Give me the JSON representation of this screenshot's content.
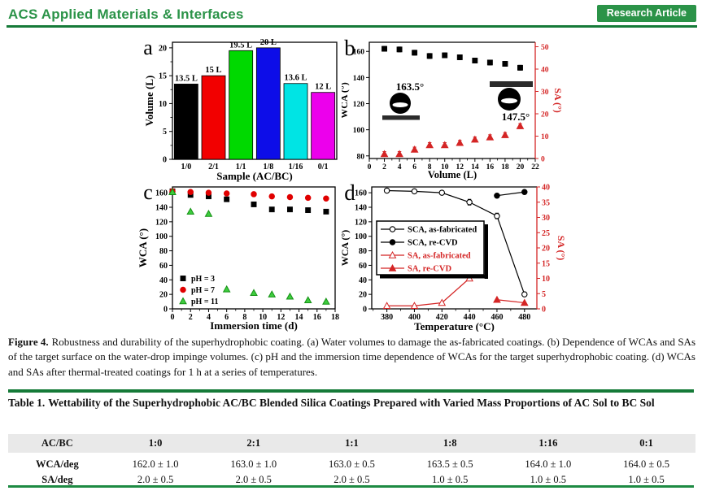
{
  "header": {
    "journal": "ACS Applied Materials & Interfaces",
    "badge": "Research Article",
    "accent_color": "#2b9348",
    "rule_color": "#157a38"
  },
  "figure": {
    "caption_label": "Figure 4.",
    "caption_text": "Robustness and durability of the superhydrophobic coating. (a) Water volumes to damage the as-fabricated coatings. (b) Dependence of WCAs and SAs of the target surface on the water-drop impinge volumes. (c) pH and the immersion time dependence of WCAs for the target superhydrophobic coating. (d) WCAs and SAs after thermal-treated coatings for 1 h at a series of temperatures."
  },
  "chart_data": [
    {
      "panel": "a",
      "type": "bar",
      "categories": [
        "1/0",
        "2/1",
        "1/1",
        "1/8",
        "1/16",
        "0/1"
      ],
      "values": [
        13.5,
        15,
        19.5,
        20,
        13.6,
        12
      ],
      "bar_labels": [
        "13.5 L",
        "15 L",
        "19.5 L",
        "20 L",
        "13.6 L",
        "12 L"
      ],
      "bar_colors": [
        "#000000",
        "#f20000",
        "#00d900",
        "#0d0de8",
        "#00e4e4",
        "#ec00ec"
      ],
      "xlabel": "Sample (AC/BC)",
      "ylabel": "Volume (L)",
      "ylim": [
        0,
        21
      ],
      "yticks": [
        0,
        5,
        10,
        15,
        20
      ]
    },
    {
      "panel": "b",
      "type": "scatter",
      "xlabel": "Volume (L)",
      "ylabel_left": "WCA (°)",
      "ylabel_right": "SA (°)",
      "xlim": [
        0,
        22
      ],
      "xticks": [
        0,
        2,
        4,
        6,
        8,
        10,
        12,
        14,
        16,
        18,
        20,
        22
      ],
      "ylim_left": [
        78,
        167
      ],
      "yticks_left": [
        80,
        100,
        120,
        140,
        160
      ],
      "ylim_right": [
        0,
        52
      ],
      "yticks_right": [
        0,
        10,
        20,
        30,
        40,
        50
      ],
      "series": [
        {
          "name": "WCA",
          "axis": "left",
          "marker": "square",
          "color": "#000000",
          "x": [
            2,
            4,
            6,
            8,
            10,
            12,
            14,
            16,
            18,
            20
          ],
          "y": [
            162,
            161.5,
            159,
            156.5,
            157,
            155.5,
            153,
            151.5,
            150.5,
            147.5
          ]
        },
        {
          "name": "SA",
          "axis": "right",
          "marker": "triangle",
          "color": "#d42525",
          "x": [
            2,
            4,
            6,
            8,
            10,
            12,
            14,
            16,
            18,
            20
          ],
          "y": [
            2,
            2,
            4,
            6,
            6,
            7,
            8.5,
            9.5,
            10.5,
            14.5
          ]
        }
      ],
      "annotations": [
        {
          "text": "163.5°",
          "target": "as-fabricated water drop inset"
        },
        {
          "text": "147.5°",
          "target": "impinged water drop inset"
        }
      ]
    },
    {
      "panel": "c",
      "type": "scatter",
      "xlabel": "Immersion time (d)",
      "ylabel": "WCA (°)",
      "xlim": [
        0,
        18
      ],
      "xticks": [
        0,
        2,
        4,
        6,
        8,
        10,
        12,
        14,
        16,
        18
      ],
      "ylim": [
        0,
        168
      ],
      "yticks": [
        0,
        20,
        40,
        60,
        80,
        100,
        120,
        140,
        160
      ],
      "legend_position": "lower-left",
      "series": [
        {
          "name": "pH = 3",
          "marker": "square",
          "color": "#000000",
          "x": [
            0,
            2,
            4,
            6,
            9,
            11,
            13,
            15,
            17
          ],
          "y": [
            162,
            157,
            155,
            151,
            144,
            137,
            137,
            136,
            134
          ]
        },
        {
          "name": "pH = 7",
          "marker": "circle",
          "color": "#e00000",
          "x": [
            0,
            2,
            4,
            6,
            9,
            11,
            13,
            15,
            17
          ],
          "y": [
            162,
            161,
            160,
            159,
            158,
            155,
            154,
            153,
            152
          ]
        },
        {
          "name": "pH = 11",
          "marker": "triangle",
          "color": "#3ecc3e",
          "x": [
            0,
            2,
            4,
            6,
            9,
            11,
            13,
            15,
            17
          ],
          "y": [
            161,
            134,
            131,
            27,
            22,
            20,
            17,
            12,
            10
          ]
        }
      ]
    },
    {
      "panel": "d",
      "type": "line",
      "xlabel": "Temperature (°C)",
      "ylabel_left": "WCA (°)",
      "ylabel_right": "SA (°)",
      "xlim": [
        369,
        489
      ],
      "xticks": [
        380,
        400,
        420,
        440,
        460,
        480
      ],
      "ylim_left": [
        0,
        168
      ],
      "yticks_left": [
        0,
        20,
        40,
        60,
        80,
        100,
        120,
        140,
        160
      ],
      "ylim_right": [
        0,
        40
      ],
      "yticks_right": [
        0,
        5,
        10,
        15,
        20,
        25,
        30,
        35,
        40
      ],
      "legend_position": "center-left",
      "series": [
        {
          "name": "SCA, as-fabricated",
          "axis": "left",
          "marker": "circle",
          "fill": "open",
          "color": "#000000",
          "x": [
            380,
            400,
            420,
            440,
            460,
            480
          ],
          "y": [
            163,
            162,
            160,
            147,
            128,
            20
          ]
        },
        {
          "name": "SCA, re-CVD",
          "axis": "left",
          "marker": "circle",
          "fill": "solid",
          "color": "#000000",
          "x": [
            460,
            480
          ],
          "y": [
            156,
            161
          ]
        },
        {
          "name": "SA, as-fabricated",
          "axis": "right",
          "marker": "triangle",
          "fill": "open",
          "color": "#d42525",
          "x": [
            380,
            400,
            420,
            440
          ],
          "y": [
            1,
            1,
            2,
            10
          ]
        },
        {
          "name": "SA, re-CVD",
          "axis": "right",
          "marker": "triangle",
          "fill": "solid",
          "color": "#d42525",
          "x": [
            460,
            480
          ],
          "y": [
            3,
            2
          ]
        }
      ]
    }
  ],
  "table": {
    "title_label": "Table 1.",
    "title": "Wettability of the Superhydrophobic AC/BC Blended Silica Coatings Prepared with Varied Mass Proportions of AC Sol to BC Sol",
    "columns": [
      "AC/BC",
      "1:0",
      "2:1",
      "1:1",
      "1:8",
      "1:16",
      "0:1"
    ],
    "rows": [
      {
        "label": "WCA/deg",
        "values": [
          "162.0 ± 1.0",
          "163.0 ± 1.0",
          "163.0 ± 0.5",
          "163.5 ± 0.5",
          "164.0 ± 1.0",
          "164.0 ± 0.5"
        ]
      },
      {
        "label": "SA/deg",
        "values": [
          "2.0 ± 0.5",
          "2.0 ± 0.5",
          "2.0 ± 0.5",
          "1.0 ± 0.5",
          "1.0 ± 0.5",
          "1.0 ± 0.5"
        ]
      }
    ]
  }
}
